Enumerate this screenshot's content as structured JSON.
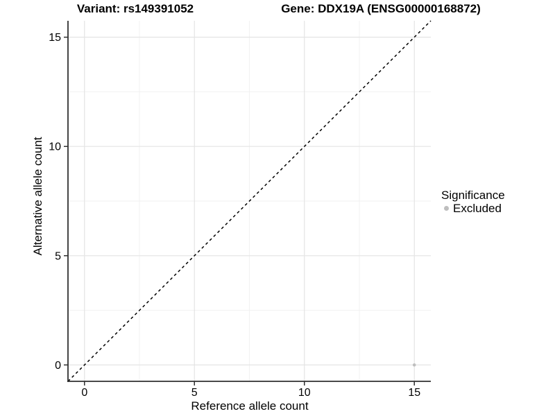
{
  "page": {
    "background": "#FFFFFF"
  },
  "chart_data": {
    "type": "scatter",
    "titles": {
      "left": "Variant: rs149391052",
      "right": "Gene: DDX19A (ENSG00000168872)"
    },
    "xlabel": "Reference allele count",
    "ylabel": "Alternative allele count",
    "xlim": [
      -0.75,
      15.75
    ],
    "ylim": [
      -0.75,
      15.75
    ],
    "xticks": [
      0,
      5,
      10,
      15
    ],
    "yticks": [
      0,
      5,
      10,
      15
    ],
    "xticks_minor": [
      2.5,
      7.5,
      12.5
    ],
    "yticks_minor": [
      2.5,
      7.5,
      12.5
    ],
    "grid": "major and minor gridlines on white background",
    "identity_line": {
      "type": "y=x",
      "style": "dashed",
      "color": "#000000"
    },
    "series": [
      {
        "name": "Excluded",
        "color": "#BEBEBE",
        "point_size": 2.3,
        "points": [
          {
            "x": 15,
            "y": 0
          }
        ]
      }
    ],
    "legend": {
      "title": "Significance",
      "position": "right",
      "items": [
        {
          "label": "Excluded",
          "color": "#BEBEBE"
        }
      ]
    }
  },
  "colors": {
    "background": "#FFFFFF",
    "grid_major": "#E4E4E4",
    "grid_minor": "#F1F1F1",
    "axis_line": "#2F2F2F",
    "text": "#000000"
  }
}
